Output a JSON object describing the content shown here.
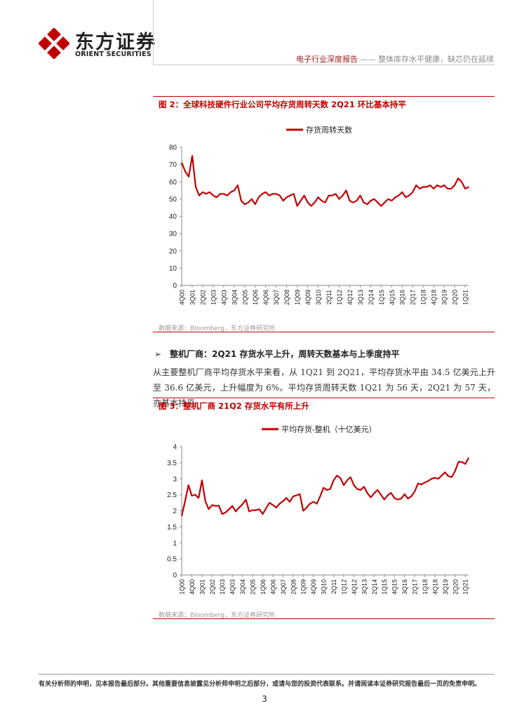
{
  "header": {
    "logo_cn": "东方证券",
    "logo_en": "ORIENT SECURITIES",
    "report_type": "电子行业深度报告",
    "separator": " —— ",
    "report_subtitle": "整体库存水平健康，缺芯仍在延续"
  },
  "figure2": {
    "title": "图 2：全球科技硬件行业公司平均存货周转天数 2Q21 环比基本持平",
    "source": "数据来源：Bloomberg，东方证券研究所"
  },
  "section": {
    "bullet": "➢",
    "title": "整机厂商：2Q21 存货水平上升，周转天数基本与上季度持平",
    "body": "从主要整机厂商平均存货水平来看，从 1Q21 到 2Q21，平均存货水平由 34.5 亿美元上升至 36.6 亿美元，上升幅度为 6%。平均存货周转天数 1Q21 为 56 天，2Q21 为 57 天，亦基本持平。"
  },
  "figure3": {
    "title": "图 3：整机厂商 21Q2 存货水平有所上升",
    "source": "数据来源：Bloomberg，东方证券研究所"
  },
  "footer": {
    "disclaimer": "有关分析师的申明，见本报告最后部分。其他重要信息披露见分析师申明之后部分，或请与您的投资代表联系。并请阅读本证券研究报告最后一页的免责申明。",
    "page": "3"
  },
  "colors": {
    "accent": "#c00000",
    "line": "#c00000"
  },
  "chart_data": [
    {
      "type": "line",
      "legend": "存货周转天数",
      "ylim": [
        0,
        80
      ],
      "yticks": [
        0,
        10,
        20,
        30,
        40,
        50,
        60,
        70,
        80
      ],
      "xtick_labels": [
        "4Q00",
        "3Q01",
        "2Q02",
        "1Q03",
        "4Q03",
        "3Q04",
        "2Q05",
        "1Q06",
        "4Q06",
        "3Q07",
        "2Q08",
        "1Q09",
        "4Q09",
        "3Q10",
        "2Q11",
        "1Q12",
        "4Q12",
        "3Q13",
        "2Q14",
        "1Q15",
        "4Q15",
        "3Q16",
        "2Q17",
        "1Q18",
        "4Q18",
        "3Q19",
        "2Q20",
        "1Q21"
      ],
      "xtick_every": 3,
      "values": [
        71,
        66,
        63,
        75,
        57,
        52,
        54,
        53,
        54,
        52,
        51,
        53,
        53,
        52,
        54,
        55,
        58,
        49,
        47,
        48,
        50,
        47,
        51,
        53,
        54,
        52,
        53,
        53,
        52,
        49,
        51,
        52,
        53,
        46,
        49,
        52,
        48,
        46,
        48,
        51,
        49,
        48,
        52,
        52,
        53,
        50,
        52,
        55,
        49,
        48,
        49,
        52,
        48,
        47,
        49,
        50,
        48,
        46,
        48,
        50,
        49,
        51,
        52,
        54,
        51,
        52,
        54,
        58,
        56,
        57,
        57,
        58,
        56,
        58,
        57,
        58,
        56,
        56,
        58,
        62,
        60,
        56,
        57
      ]
    },
    {
      "type": "line",
      "legend": "平均存货-整机（十亿美元）",
      "ylim": [
        0,
        4
      ],
      "yticks": [
        0,
        0.5,
        1,
        1.5,
        2,
        2.5,
        3,
        3.5,
        4
      ],
      "xtick_labels": [
        "1Q00",
        "4Q00",
        "3Q01",
        "2Q02",
        "1Q03",
        "4Q03",
        "3Q04",
        "2Q05",
        "1Q06",
        "4Q06",
        "3Q07",
        "2Q08",
        "1Q09",
        "4Q09",
        "3Q10",
        "2Q11",
        "1Q12",
        "4Q12",
        "3Q13",
        "2Q14",
        "1Q15",
        "4Q15",
        "3Q16",
        "2Q17",
        "1Q18",
        "4Q18",
        "3Q19",
        "2Q20",
        "1Q21"
      ],
      "xtick_every": 3,
      "values": [
        1.84,
        2.3,
        2.8,
        2.47,
        2.5,
        2.4,
        2.95,
        2.3,
        2.05,
        2.18,
        2.15,
        2.16,
        1.9,
        1.95,
        2.05,
        2.15,
        1.98,
        2.1,
        2.2,
        2.35,
        1.98,
        2.02,
        2.02,
        2.05,
        1.9,
        2.08,
        2.25,
        2.18,
        2.1,
        2.22,
        2.3,
        2.4,
        2.28,
        2.45,
        2.48,
        2.52,
        2.0,
        2.1,
        2.22,
        2.28,
        2.22,
        2.45,
        2.72,
        2.65,
        2.68,
        2.95,
        3.1,
        3.02,
        2.8,
        2.95,
        3.05,
        2.8,
        2.68,
        2.65,
        2.75,
        2.55,
        2.42,
        2.55,
        2.65,
        2.5,
        2.35,
        2.48,
        2.56,
        2.4,
        2.35,
        2.38,
        2.52,
        2.38,
        2.45,
        2.6,
        2.85,
        2.82,
        2.88,
        2.93,
        3.0,
        3.03,
        3.0,
        3.1,
        3.2,
        3.08,
        3.05,
        3.25,
        3.53,
        3.52,
        3.46,
        3.65
      ]
    }
  ]
}
